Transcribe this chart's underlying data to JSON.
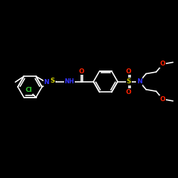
{
  "bg_color": "#000000",
  "atom_colors": {
    "C": "#ffffff",
    "N": "#3333ff",
    "O": "#ff2200",
    "S": "#cccc00",
    "Cl": "#33cc33",
    "H": "#ffffff"
  },
  "bond_color": "#ffffff",
  "bond_width": 1.2,
  "figsize": [
    2.5,
    2.5
  ],
  "dpi": 100
}
